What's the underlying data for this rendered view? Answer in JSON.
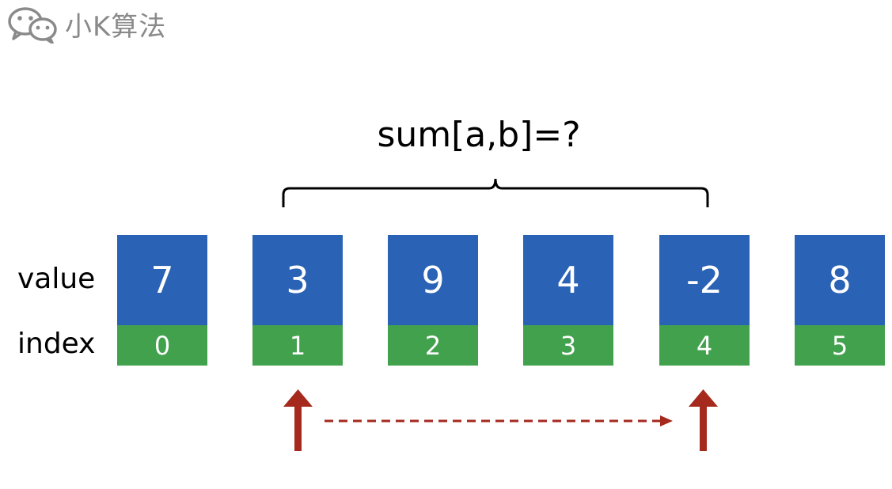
{
  "watermark": {
    "icon": "wechat-icon",
    "text": "小K算法"
  },
  "formula": "sum[a,b]=?",
  "labels": {
    "value": "value",
    "index": "index"
  },
  "array": [
    {
      "value": "7",
      "index": "0"
    },
    {
      "value": "3",
      "index": "1"
    },
    {
      "value": "9",
      "index": "2"
    },
    {
      "value": "4",
      "index": "3"
    },
    {
      "value": "-2",
      "index": "4"
    },
    {
      "value": "8",
      "index": "5"
    }
  ],
  "colors": {
    "value_cell": "#2a62b5",
    "index_cell": "#42a14d",
    "arrow": "#a52a1d",
    "watermark": "#8a8a8a"
  },
  "range": {
    "a_index": 1,
    "b_index": 4
  }
}
